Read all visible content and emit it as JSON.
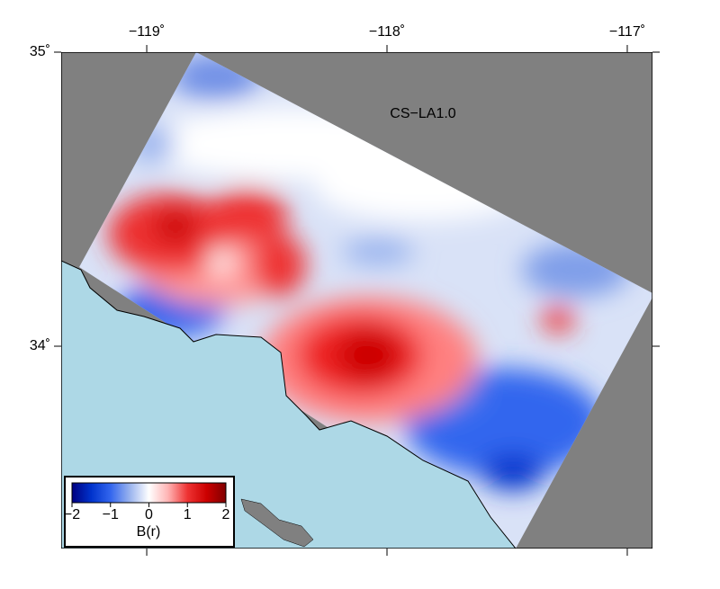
{
  "map": {
    "xlim": [
      -119.356,
      -116.895
    ],
    "ylim": [
      33.312,
      35
    ],
    "xticks": [
      {
        "value": -119,
        "label": "−119˚"
      },
      {
        "value": -118,
        "label": "−118˚"
      },
      {
        "value": -117,
        "label": "−117˚"
      }
    ],
    "yticks": [
      {
        "value": 35,
        "label": "35˚"
      },
      {
        "value": 34,
        "label": "34˚"
      }
    ],
    "label": "CS−LA1.0",
    "colorbar": {
      "lim": [
        -2,
        2
      ],
      "ticks": [
        {
          "value": -2,
          "label": "−2"
        },
        {
          "value": -1,
          "label": "−1"
        },
        0,
        1,
        2
      ],
      "label": "B(r)",
      "colors": [
        "#000080",
        "#0033cc",
        "#3366ee",
        "#99b3ee",
        "#ffffff",
        "#ffb3b3",
        "#ee3333",
        "#cc0000",
        "#800000"
      ]
    }
  }
}
